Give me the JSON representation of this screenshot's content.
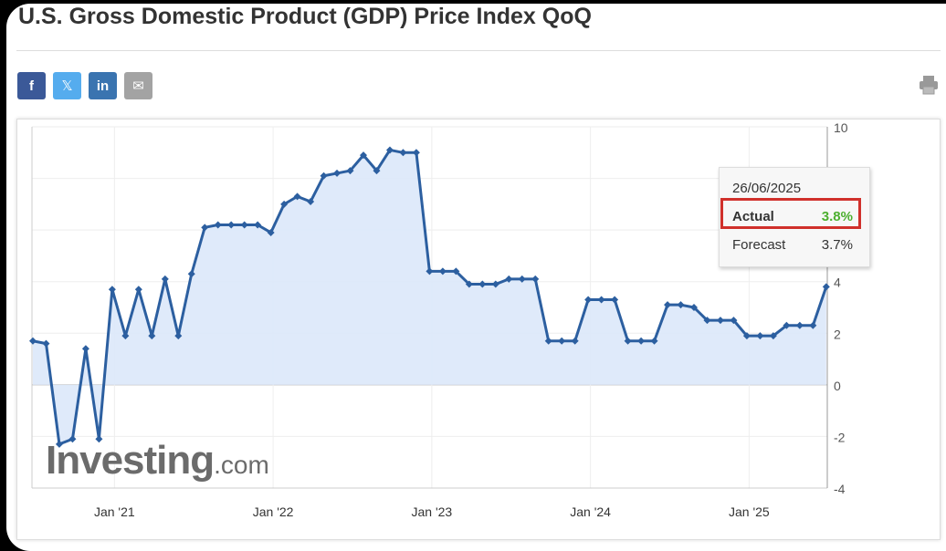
{
  "header": {
    "title": "U.S. Gross Domestic Product (GDP) Price Index QoQ"
  },
  "share": {
    "facebook": "f",
    "twitter": "𝕏",
    "linkedin": "in",
    "email": "✉"
  },
  "colors": {
    "facebook": "#3b5998",
    "twitter": "#55acee",
    "linkedin": "#3a74b0",
    "email": "#a3a3a3",
    "line": "#2c5fa0",
    "fill": "#dbe8fa",
    "actual": "#4caf2f",
    "highlight": "#d0302b"
  },
  "tooltip": {
    "date": "26/06/2025",
    "actual_label": "Actual",
    "actual_value": "3.8%",
    "forecast_label": "Forecast",
    "forecast_value": "3.7%"
  },
  "watermark": {
    "brand": "Investing",
    "suffix": ".com"
  },
  "chart_data": {
    "type": "area",
    "title": "",
    "xlabel": "",
    "ylabel": "",
    "ylim": [
      -4,
      10
    ],
    "yticks": [
      10,
      4,
      2,
      0,
      -2,
      -4
    ],
    "xticks": [
      {
        "date": "2021-01",
        "label": "Jan '21"
      },
      {
        "date": "2022-01",
        "label": "Jan '22"
      },
      {
        "date": "2023-01",
        "label": "Jan '23"
      },
      {
        "date": "2024-01",
        "label": "Jan '24"
      },
      {
        "date": "2025-01",
        "label": "Jan '25"
      }
    ],
    "grid": true,
    "y_axis_side": "right",
    "x_start": "2020-06",
    "x_end": "2025-06",
    "frequency": "monthly",
    "values": [
      1.7,
      1.6,
      -2.3,
      -2.1,
      1.4,
      -2.1,
      3.7,
      1.9,
      3.7,
      1.9,
      4.1,
      1.9,
      4.3,
      6.1,
      6.2,
      6.2,
      6.2,
      6.2,
      5.9,
      7.0,
      7.3,
      7.1,
      8.1,
      8.2,
      8.3,
      8.9,
      8.3,
      9.1,
      9.0,
      9.0,
      4.4,
      4.4,
      4.4,
      3.9,
      3.9,
      3.9,
      4.1,
      4.1,
      4.1,
      1.7,
      1.7,
      1.7,
      3.3,
      3.3,
      3.3,
      1.7,
      1.7,
      1.7,
      3.1,
      3.1,
      3.0,
      2.5,
      2.5,
      2.5,
      1.9,
      1.9,
      1.9,
      2.3,
      2.3,
      2.3,
      3.8
    ]
  }
}
